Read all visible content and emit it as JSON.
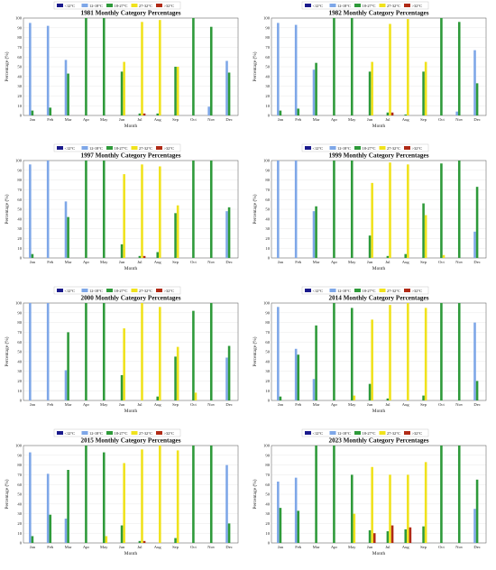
{
  "legend": [
    "<12°C",
    "12-18°C",
    "18-27°C",
    "27-32°C",
    ">32°C"
  ],
  "colors": [
    "#1a1a8c",
    "#7ea7e8",
    "#2e9a3a",
    "#f0e21c",
    "#b02a16"
  ],
  "months": [
    "Jan",
    "Feb",
    "Mar",
    "Apr",
    "May",
    "Jun",
    "Jul",
    "Aug",
    "Sep",
    "Oct",
    "Nov",
    "Dec"
  ],
  "xlabel": "Month",
  "ylabel": "Percentage (%)",
  "yticks": [
    "0",
    "10",
    "20",
    "30",
    "40",
    "50",
    "60",
    "70",
    "80",
    "90",
    "100"
  ],
  "chart_data": [
    {
      "type": "bar",
      "title": "1981 Monthly Category Percentages",
      "categories": [
        "Jan",
        "Feb",
        "Mar",
        "Apr",
        "May",
        "Jun",
        "Jul",
        "Aug",
        "Sep",
        "Oct",
        "Nov",
        "Dec"
      ],
      "ylim": [
        0,
        100
      ],
      "xlabel": "Month",
      "ylabel": "Percentage (%)",
      "legend_position": "top",
      "series": [
        {
          "name": "<12°C",
          "values": [
            0,
            0,
            0,
            0,
            0,
            0,
            0,
            0,
            0,
            0,
            0,
            0
          ]
        },
        {
          "name": "12-18°C",
          "values": [
            95,
            92,
            57,
            0,
            0,
            0,
            0,
            0,
            0,
            0,
            9,
            56
          ]
        },
        {
          "name": "18-27°C",
          "values": [
            5,
            8,
            43,
            100,
            100,
            45,
            2,
            2,
            50,
            100,
            91,
            44
          ]
        },
        {
          "name": "27-32°C",
          "values": [
            0,
            0,
            0,
            0,
            0,
            55,
            96,
            98,
            50,
            0,
            0,
            0
          ]
        },
        {
          "name": ">32°C",
          "values": [
            0,
            0,
            0,
            0,
            0,
            0,
            2,
            0,
            0,
            0,
            0,
            0
          ]
        }
      ]
    },
    {
      "type": "bar",
      "title": "1982 Monthly Category Percentages",
      "categories": [
        "Jan",
        "Feb",
        "Mar",
        "Apr",
        "May",
        "Jun",
        "Jul",
        "Aug",
        "Sep",
        "Oct",
        "Nov",
        "Dec"
      ],
      "ylim": [
        0,
        100
      ],
      "xlabel": "Month",
      "ylabel": "Percentage (%)",
      "legend_position": "top",
      "series": [
        {
          "name": "<12°C",
          "values": [
            0,
            0,
            0,
            0,
            0,
            0,
            0,
            0,
            0,
            0,
            0,
            0
          ]
        },
        {
          "name": "12-18°C",
          "values": [
            95,
            93,
            47,
            0,
            0,
            0,
            0,
            0,
            0,
            0,
            4,
            67
          ]
        },
        {
          "name": "18-27°C",
          "values": [
            5,
            7,
            54,
            100,
            100,
            45,
            3,
            1,
            45,
            100,
            96,
            33
          ]
        },
        {
          "name": "27-32°C",
          "values": [
            0,
            0,
            0,
            0,
            0,
            55,
            94,
            99,
            55,
            0,
            0,
            0
          ]
        },
        {
          "name": ">32°C",
          "values": [
            0,
            0,
            0,
            0,
            0,
            0,
            3,
            0,
            0,
            0,
            0,
            0
          ]
        }
      ]
    },
    {
      "type": "bar",
      "title": "1997 Monthly Category Percentages",
      "categories": [
        "Jan",
        "Feb",
        "Mar",
        "Apr",
        "May",
        "Jun",
        "Jul",
        "Aug",
        "Sep",
        "Oct",
        "Nov",
        "Dec"
      ],
      "ylim": [
        0,
        100
      ],
      "xlabel": "Month",
      "ylabel": "Percentage (%)",
      "legend_position": "top",
      "series": [
        {
          "name": "<12°C",
          "values": [
            0,
            0,
            0,
            0,
            0,
            0,
            0,
            0,
            0,
            0,
            0,
            0
          ]
        },
        {
          "name": "12-18°C",
          "values": [
            96,
            100,
            58,
            0,
            0,
            0,
            0,
            0,
            0,
            0,
            0,
            48
          ]
        },
        {
          "name": "18-27°C",
          "values": [
            4,
            0,
            42,
            100,
            100,
            14,
            2,
            6,
            46,
            100,
            100,
            52
          ]
        },
        {
          "name": "27-32°C",
          "values": [
            0,
            0,
            0,
            0,
            0,
            86,
            96,
            94,
            54,
            0,
            0,
            0
          ]
        },
        {
          "name": ">32°C",
          "values": [
            0,
            0,
            0,
            0,
            0,
            0,
            2,
            0,
            0,
            0,
            0,
            0
          ]
        }
      ]
    },
    {
      "type": "bar",
      "title": "1999 Monthly Category Percentages",
      "categories": [
        "Jan",
        "Feb",
        "Mar",
        "Apr",
        "May",
        "Jun",
        "Jul",
        "Aug",
        "Sep",
        "Oct",
        "Nov",
        "Dec"
      ],
      "ylim": [
        0,
        100
      ],
      "xlabel": "Month",
      "ylabel": "Percentage (%)",
      "legend_position": "top",
      "series": [
        {
          "name": "<12°C",
          "values": [
            0,
            0,
            0,
            0,
            0,
            0,
            0,
            0,
            0,
            0,
            0,
            0
          ]
        },
        {
          "name": "12-18°C",
          "values": [
            100,
            100,
            48,
            0,
            0,
            0,
            0,
            0,
            0,
            0,
            0,
            27
          ]
        },
        {
          "name": "18-27°C",
          "values": [
            0,
            0,
            53,
            100,
            100,
            23,
            2,
            4,
            56,
            97,
            100,
            73
          ]
        },
        {
          "name": "27-32°C",
          "values": [
            0,
            0,
            0,
            0,
            0,
            77,
            98,
            96,
            44,
            3,
            0,
            0
          ]
        },
        {
          "name": ">32°C",
          "values": [
            0,
            0,
            0,
            0,
            0,
            0,
            0,
            0,
            0,
            0,
            0,
            0
          ]
        }
      ]
    },
    {
      "type": "bar",
      "title": "2000 Monthly Category Percentages",
      "categories": [
        "Jan",
        "Feb",
        "Mar",
        "Apr",
        "May",
        "Jun",
        "Jul",
        "Aug",
        "Sep",
        "Oct",
        "Nov",
        "Dec"
      ],
      "ylim": [
        0,
        100
      ],
      "xlabel": "Month",
      "ylabel": "Percentage (%)",
      "legend_position": "top",
      "series": [
        {
          "name": "<12°C",
          "values": [
            0,
            0,
            0,
            0,
            0,
            0,
            0,
            0,
            0,
            0,
            0,
            0
          ]
        },
        {
          "name": "12-18°C",
          "values": [
            100,
            100,
            31,
            0,
            0,
            0,
            0,
            0,
            0,
            0,
            0,
            44
          ]
        },
        {
          "name": "18-27°C",
          "values": [
            0,
            0,
            70,
            100,
            100,
            26,
            0,
            4,
            45,
            92,
            100,
            56
          ]
        },
        {
          "name": "27-32°C",
          "values": [
            0,
            0,
            0,
            0,
            0,
            74,
            100,
            96,
            55,
            8,
            0,
            0
          ]
        },
        {
          "name": ">32°C",
          "values": [
            0,
            0,
            0,
            0,
            0,
            0,
            0,
            0,
            0,
            0,
            0,
            0
          ]
        }
      ]
    },
    {
      "type": "bar",
      "title": "2014 Monthly Category Percentages",
      "categories": [
        "Jan",
        "Feb",
        "Mar",
        "Apr",
        "May",
        "Jun",
        "Jul",
        "Aug",
        "Sep",
        "Oct",
        "Nov",
        "Dec"
      ],
      "ylim": [
        0,
        100
      ],
      "xlabel": "Month",
      "ylabel": "Percentage (%)",
      "legend_position": "top",
      "series": [
        {
          "name": "<12°C",
          "values": [
            0,
            0,
            0,
            0,
            0,
            0,
            0,
            0,
            0,
            0,
            0,
            0
          ]
        },
        {
          "name": "12-18°C",
          "values": [
            96,
            53,
            22,
            0,
            0,
            0,
            0,
            0,
            0,
            0,
            0,
            80
          ]
        },
        {
          "name": "18-27°C",
          "values": [
            4,
            47,
            77,
            100,
            95,
            17,
            2,
            0,
            5,
            100,
            100,
            20
          ]
        },
        {
          "name": "27-32°C",
          "values": [
            0,
            0,
            0,
            0,
            5,
            83,
            98,
            100,
            95,
            0,
            0,
            0
          ]
        },
        {
          "name": ">32°C",
          "values": [
            0,
            0,
            0,
            0,
            0,
            0,
            0,
            0,
            0,
            0,
            0,
            0
          ]
        }
      ]
    },
    {
      "type": "bar",
      "title": "2015 Monthly Category Percentages",
      "categories": [
        "Jan",
        "Feb",
        "Mar",
        "Apr",
        "May",
        "Jun",
        "Jul",
        "Aug",
        "Sep",
        "Oct",
        "Nov",
        "Dec"
      ],
      "ylim": [
        0,
        100
      ],
      "xlabel": "Month",
      "ylabel": "Percentage (%)",
      "legend_position": "top",
      "series": [
        {
          "name": "<12°C",
          "values": [
            0,
            0,
            0,
            0,
            0,
            0,
            0,
            0,
            0,
            0,
            0,
            0
          ]
        },
        {
          "name": "12-18°C",
          "values": [
            93,
            71,
            25,
            0,
            0,
            0,
            0,
            0,
            0,
            0,
            0,
            80
          ]
        },
        {
          "name": "18-27°C",
          "values": [
            7,
            29,
            75,
            100,
            93,
            18,
            2,
            0,
            5,
            100,
            100,
            20
          ]
        },
        {
          "name": "27-32°C",
          "values": [
            0,
            0,
            0,
            0,
            7,
            82,
            96,
            100,
            95,
            0,
            0,
            0
          ]
        },
        {
          "name": ">32°C",
          "values": [
            0,
            0,
            0,
            0,
            0,
            0,
            2,
            0,
            0,
            0,
            0,
            0
          ]
        }
      ]
    },
    {
      "type": "bar",
      "title": "2023 Monthly Category Percentages",
      "categories": [
        "Jan",
        "Feb",
        "Mar",
        "Apr",
        "May",
        "Jun",
        "Jul",
        "Aug",
        "Sep",
        "Oct",
        "Nov",
        "Dec"
      ],
      "ylim": [
        0,
        100
      ],
      "xlabel": "Month",
      "ylabel": "Percentage (%)",
      "legend_position": "top",
      "series": [
        {
          "name": "<12°C",
          "values": [
            0,
            0,
            0,
            0,
            0,
            0,
            0,
            0,
            0,
            0,
            0,
            0
          ]
        },
        {
          "name": "12-18°C",
          "values": [
            63,
            67,
            0,
            0,
            0,
            0,
            0,
            0,
            0,
            0,
            0,
            35
          ]
        },
        {
          "name": "18-27°C",
          "values": [
            36,
            33,
            100,
            100,
            70,
            13,
            12,
            14,
            17,
            100,
            100,
            65
          ]
        },
        {
          "name": "27-32°C",
          "values": [
            0,
            0,
            0,
            0,
            30,
            78,
            70,
            70,
            83,
            0,
            0,
            0
          ]
        },
        {
          "name": ">32°C",
          "values": [
            0,
            0,
            0,
            0,
            0,
            10,
            18,
            16,
            0,
            0,
            0,
            0
          ]
        }
      ]
    }
  ]
}
